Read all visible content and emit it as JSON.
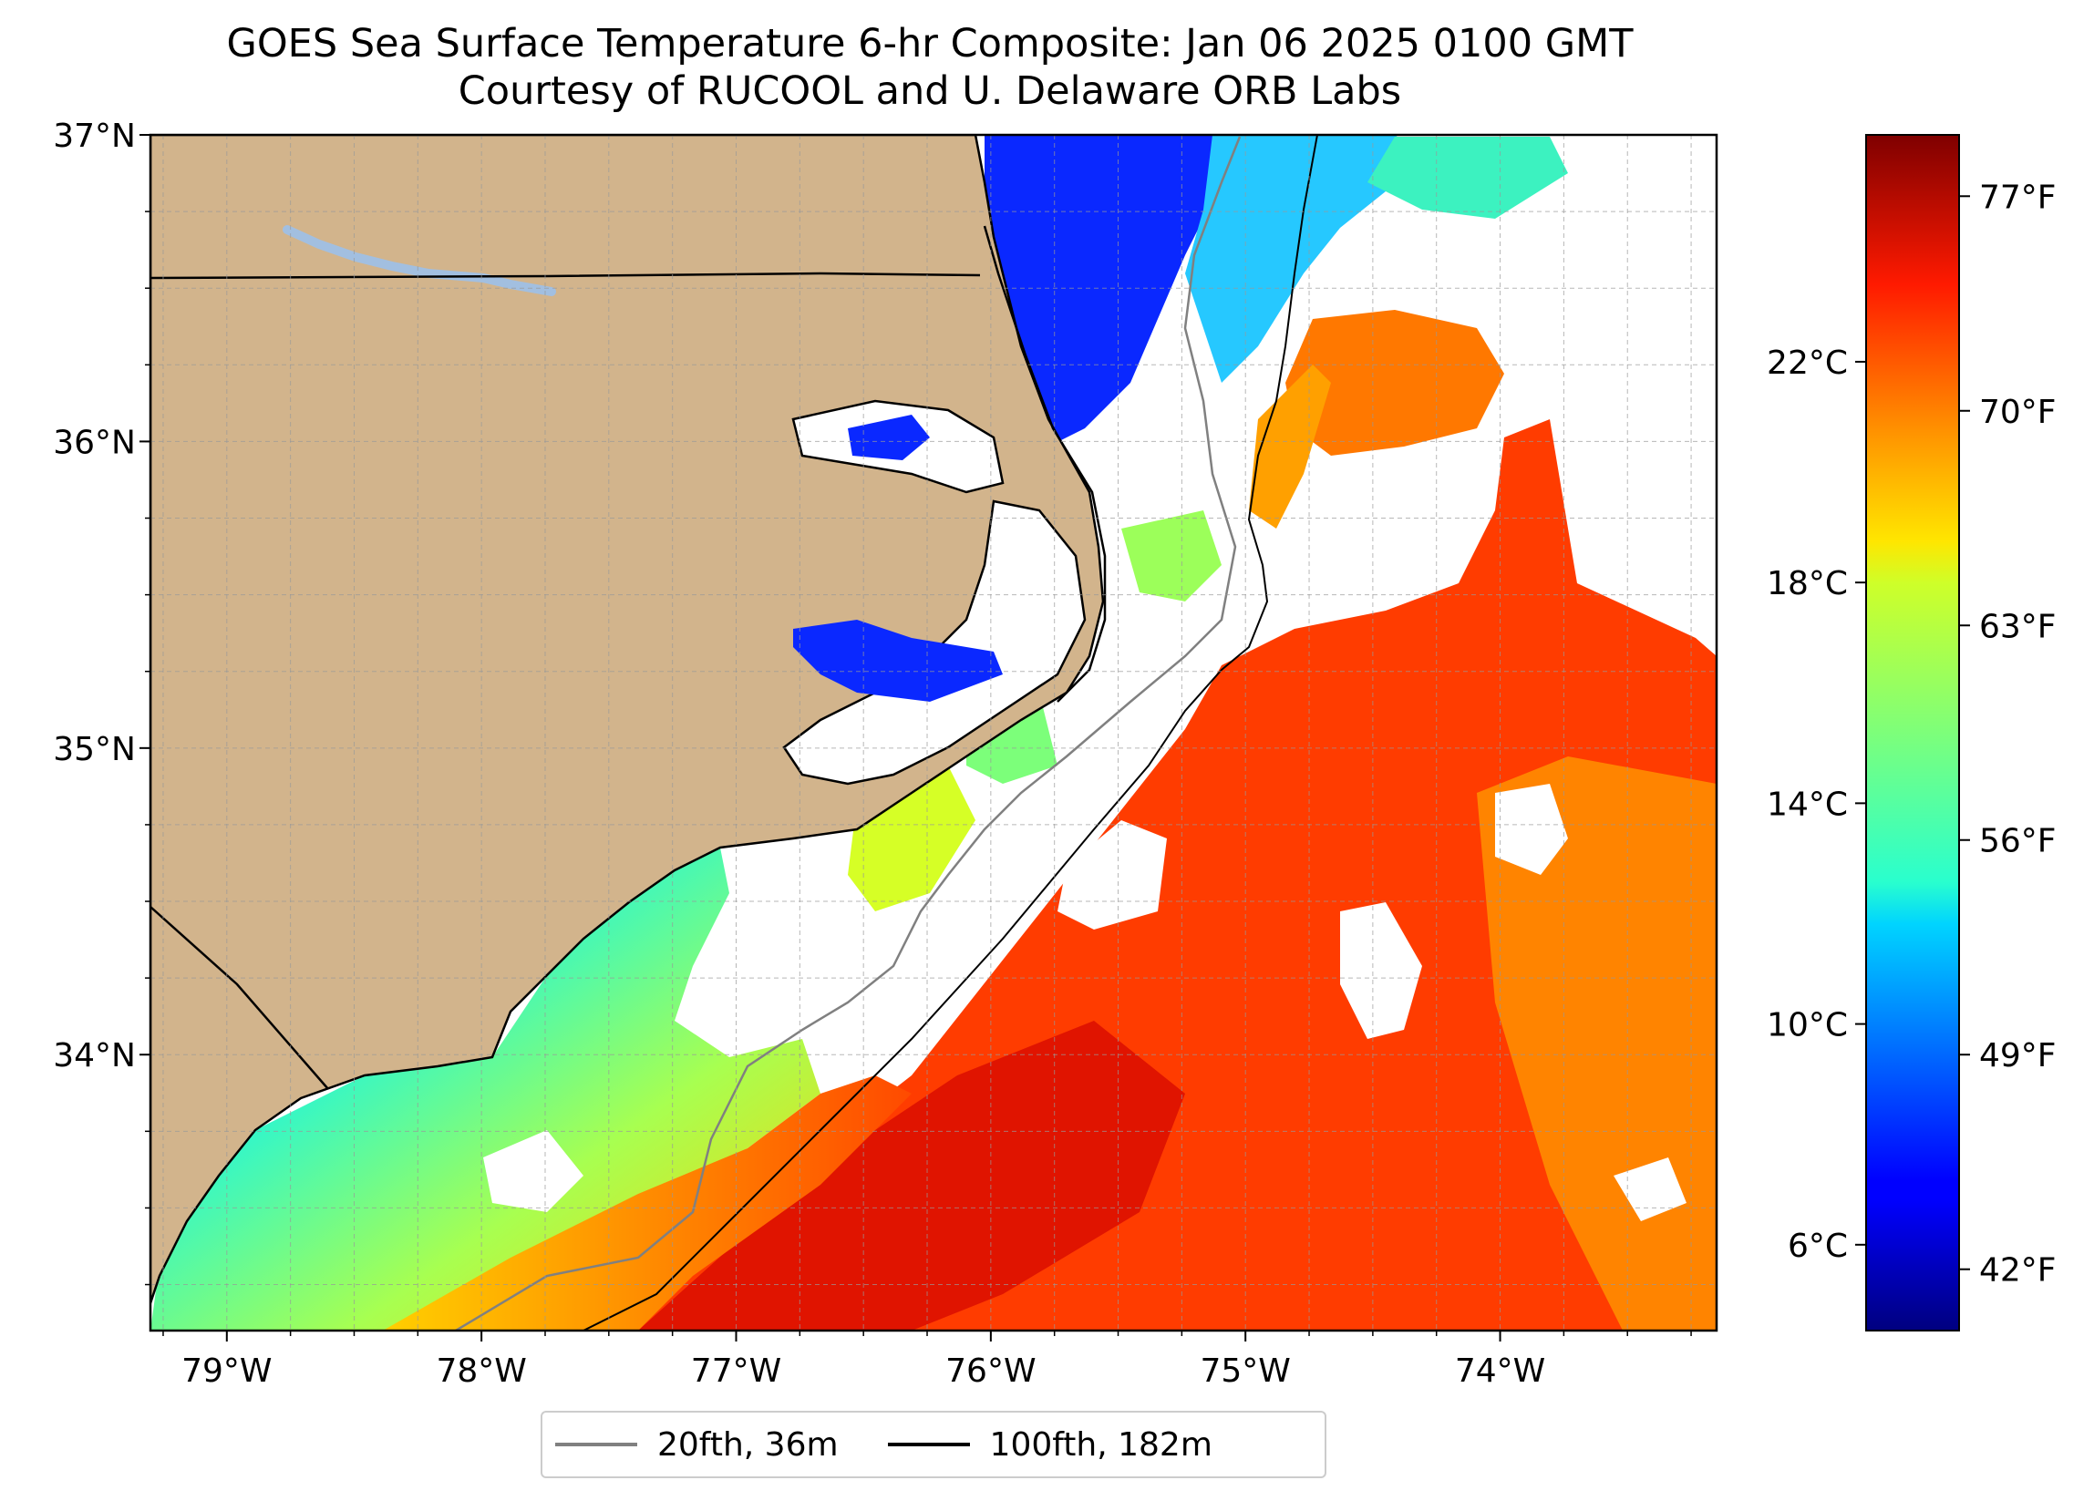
{
  "title": {
    "line1": "GOES Sea Surface Temperature 6-hr Composite: Jan 06 2025 0100 GMT",
    "line2": "Courtesy of RUCOOL and U. Delaware ORB Labs"
  },
  "map": {
    "lon_range": [
      -79.3,
      -73.15
    ],
    "lat_range": [
      33.1,
      37.0
    ],
    "lon_ticks": [
      -79,
      -78,
      -77,
      -76,
      -75,
      -74
    ],
    "lon_tick_labels": [
      "79°W",
      "78°W",
      "77°W",
      "76°W",
      "75°W",
      "74°W"
    ],
    "lat_ticks": [
      34,
      35,
      36,
      37
    ],
    "lat_tick_labels": [
      "34°N",
      "35°N",
      "36°N",
      "37°N"
    ],
    "gridlines": true,
    "land_color": "#d2b48c",
    "lake_color": "#a2bfe0",
    "cloud_mask_color": "#ffffff"
  },
  "colorbar": {
    "colormap": "jet",
    "range_f": [
      40,
      79
    ],
    "celsius_ticks": [
      6,
      10,
      14,
      18,
      22
    ],
    "celsius_labels": [
      "6°C",
      "10°C",
      "14°C",
      "18°C",
      "22°C"
    ],
    "fahrenheit_ticks": [
      42,
      49,
      56,
      63,
      70,
      77
    ],
    "fahrenheit_labels": [
      "42°F",
      "49°F",
      "56°F",
      "63°F",
      "70°F",
      "77°F"
    ]
  },
  "legend": {
    "placement": "bottom-center",
    "items": [
      {
        "label": "20fth, 36m",
        "color": "#808080"
      },
      {
        "label": "100fth, 182m",
        "color": "#000000"
      }
    ]
  }
}
